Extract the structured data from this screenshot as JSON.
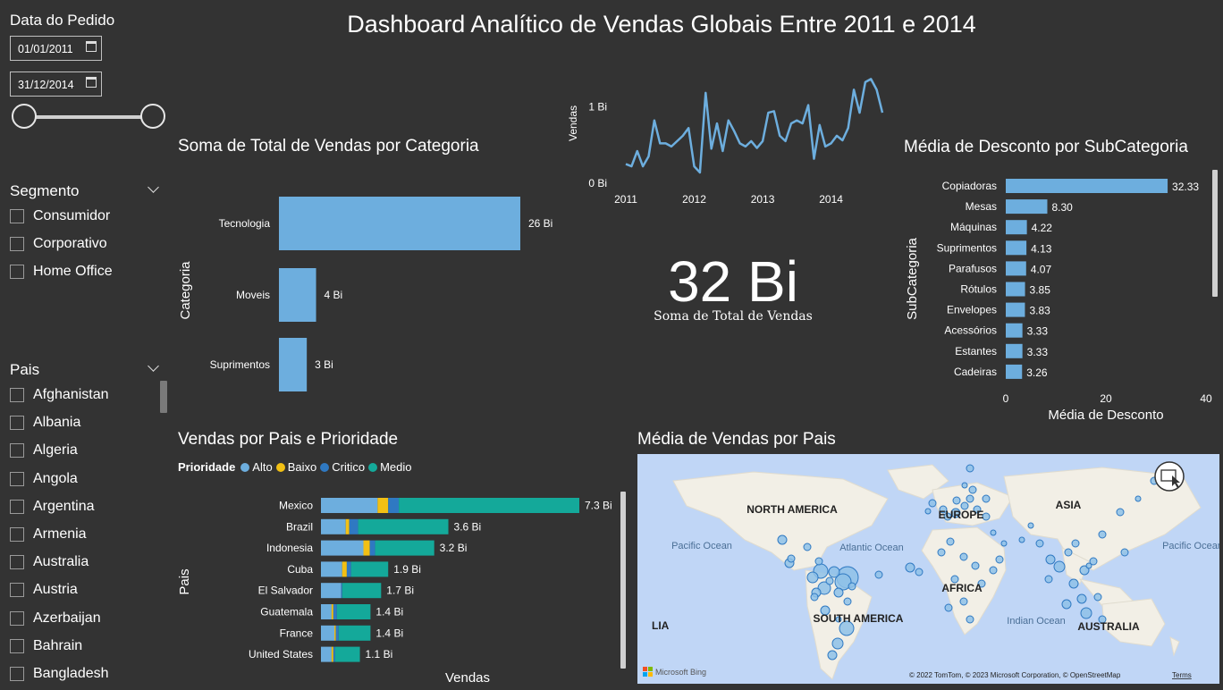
{
  "title": "Dashboard Analítico de Vendas Globais Entre 2011 e 2014",
  "filters": {
    "date": {
      "title": "Data do Pedido",
      "start": "01/01/2011",
      "end": "31/12/2014"
    },
    "segment": {
      "title": "Segmento",
      "items": [
        "Consumidor",
        "Corporativo",
        "Home Office"
      ]
    },
    "country": {
      "title": "Pais",
      "items": [
        "Afghanistan",
        "Albania",
        "Algeria",
        "Angola",
        "Argentina",
        "Armenia",
        "Australia",
        "Austria",
        "Azerbaijan",
        "Bahrain",
        "Bangladesh"
      ]
    }
  },
  "kpi": {
    "value": "32 Bi",
    "label": "Soma de Total de Vendas"
  },
  "colors": {
    "bar": "#6daede",
    "alto": "#6daede",
    "baixo": "#f2c014",
    "critico": "#2f79c2",
    "medio": "#14a99a",
    "background": "#333333"
  },
  "chart_data": [
    {
      "type": "bar",
      "orientation": "horizontal",
      "title": "Soma de Total de Vendas por Categoria",
      "ylabel": "Categoria",
      "categories": [
        "Tecnologia",
        "Moveis",
        "Suprimentos"
      ],
      "values": [
        26,
        4,
        3
      ],
      "data_labels": [
        "26 Bi",
        "4 Bi",
        "3 Bi"
      ]
    },
    {
      "type": "line",
      "title": "",
      "ylabel": "Vendas",
      "x_ticks": [
        "2011",
        "2012",
        "2013",
        "2014"
      ],
      "y_ticks": [
        "0 Bi",
        "1 Bi"
      ],
      "ylim": [
        0,
        1.4
      ],
      "xlim": [
        2011,
        2015
      ],
      "values": [
        0.25,
        0.22,
        0.42,
        0.22,
        0.35,
        0.82,
        0.52,
        0.52,
        0.48,
        0.55,
        0.62,
        0.72,
        0.22,
        0.14,
        1.18,
        0.45,
        0.78,
        0.42,
        0.82,
        0.68,
        0.52,
        0.48,
        0.55,
        0.46,
        0.55,
        0.92,
        0.94,
        0.62,
        0.55,
        0.78,
        0.82,
        0.78,
        1.02,
        0.32,
        0.76,
        0.48,
        0.52,
        0.62,
        0.56,
        0.72,
        1.22,
        0.92,
        1.32,
        1.36,
        1.22,
        0.92
      ]
    },
    {
      "type": "bar",
      "orientation": "horizontal",
      "title": "Média de Desconto por SubCategoria",
      "xlabel": "Média de Desconto",
      "ylabel": "SubCategoria",
      "xlim": [
        0,
        40
      ],
      "x_ticks": [
        "0",
        "20",
        "40"
      ],
      "categories": [
        "Copiadoras",
        "Mesas",
        "Máquinas",
        "Suprimentos",
        "Parafusos",
        "Rótulos",
        "Envelopes",
        "Acessórios",
        "Estantes",
        "Cadeiras"
      ],
      "values": [
        32.33,
        8.3,
        4.22,
        4.13,
        4.07,
        3.85,
        3.83,
        3.33,
        3.33,
        3.26
      ],
      "data_labels": [
        "32.33",
        "8.30",
        "4.22",
        "4.13",
        "4.07",
        "3.85",
        "3.83",
        "3.33",
        "3.33",
        "3.26"
      ]
    },
    {
      "type": "bar",
      "orientation": "horizontal",
      "stacked": true,
      "title": "Vendas por Pais e Prioridade",
      "xlabel": "Vendas",
      "ylabel": "Pais",
      "legend_title": "Prioridade",
      "categories": [
        "Mexico",
        "Brazil",
        "Indonesia",
        "Cuba",
        "El Salvador",
        "Guatemala",
        "France",
        "United States"
      ],
      "series": [
        {
          "name": "Alto",
          "values": [
            1.6,
            0.7,
            1.2,
            0.6,
            0.57,
            0.3,
            0.38,
            0.3
          ]
        },
        {
          "name": "Baixo",
          "values": [
            0.3,
            0.1,
            0.18,
            0.13,
            0.0,
            0.05,
            0.04,
            0.05
          ]
        },
        {
          "name": "Critico",
          "values": [
            0.3,
            0.25,
            0.15,
            0.12,
            0.03,
            0.1,
            0.08,
            0.05
          ]
        },
        {
          "name": "Medio",
          "values": [
            5.1,
            2.55,
            1.67,
            1.05,
            1.1,
            0.95,
            0.9,
            0.7
          ]
        }
      ],
      "data_labels": [
        "7.3 Bi",
        "3.6 Bi",
        "3.2 Bi",
        "1.9 Bi",
        "1.7 Bi",
        "1.4 Bi",
        "1.4 Bi",
        "1.1 Bi"
      ]
    }
  ],
  "map": {
    "title": "Média de Vendas por Pais",
    "labels": [
      "NORTH AMERICA",
      "EUROPE",
      "ASIA",
      "AFRICA",
      "SOUTH AMERICA",
      "AUSTRALIA",
      "Pacific Ocean",
      "Atlantic Ocean",
      "Indian Ocean",
      "Pacific Ocean"
    ],
    "attribution": "© 2022 TomTom, © 2023 Microsoft Corporation, © OpenStreetMap",
    "terms": "Terms",
    "logo": "Microsoft Bing"
  }
}
